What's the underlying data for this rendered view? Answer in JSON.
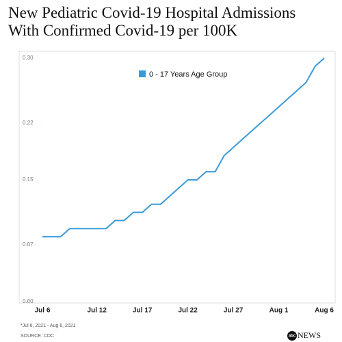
{
  "chart_data": {
    "type": "line",
    "title": "New Pediatric Covid-19 Hospital Admissions With Confirmed Covid-19 per 100K",
    "categories": [
      "Jul 6",
      null,
      null,
      null,
      null,
      null,
      "Jul 12",
      null,
      null,
      null,
      null,
      "Jul 17",
      null,
      null,
      null,
      null,
      "Jul 22",
      null,
      null,
      null,
      null,
      "Jul 27",
      null,
      null,
      null,
      null,
      "Aug 1",
      null,
      null,
      null,
      null,
      "Aug 6"
    ],
    "series": [
      {
        "name": "0 - 17 Years Age Group",
        "color": "#3a9ad9",
        "values": [
          0.08,
          0.08,
          0.08,
          0.09,
          0.09,
          0.09,
          0.09,
          0.09,
          0.1,
          0.1,
          0.11,
          0.11,
          0.12,
          0.12,
          0.13,
          0.14,
          0.15,
          0.15,
          0.16,
          0.16,
          0.18,
          0.19,
          0.2,
          0.21,
          0.22,
          0.23,
          0.24,
          0.25,
          0.26,
          0.27,
          0.29,
          0.3
        ]
      }
    ],
    "ylim": [
      0,
      0.3
    ],
    "yticks": [
      {
        "value": 0,
        "label": "0.00"
      },
      0.07,
      0.15,
      0.22,
      {
        "value": 0.3,
        "label": "0.30"
      }
    ],
    "legend": "top",
    "footnote": "*Jul 6, 2021 - Aug 6, 2021",
    "source": "SOURCE: CDC",
    "logo": {
      "mark": "abc",
      "text": "NEWS"
    }
  }
}
